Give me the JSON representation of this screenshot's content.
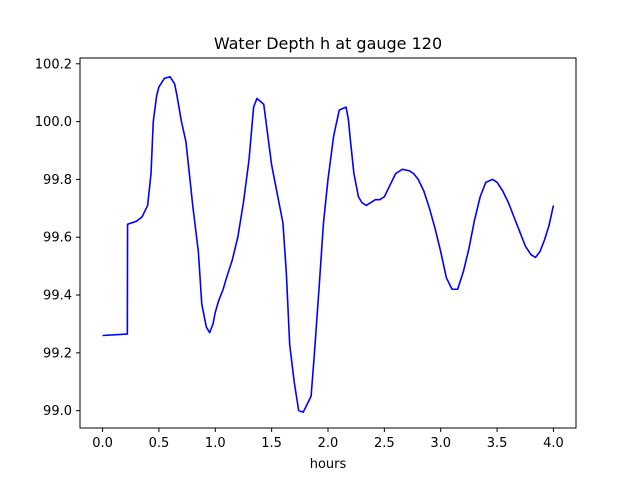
{
  "chart_data": {
    "type": "line",
    "title": "Water Depth h at gauge 120",
    "xlabel": "hours",
    "ylabel": "",
    "xlim": [
      -0.2,
      4.2
    ],
    "ylim": [
      98.94,
      100.22
    ],
    "xticks": [
      0.0,
      0.5,
      1.0,
      1.5,
      2.0,
      2.5,
      3.0,
      3.5,
      4.0
    ],
    "xtick_labels": [
      "0.0",
      "0.5",
      "1.0",
      "1.5",
      "2.0",
      "2.5",
      "3.0",
      "3.5",
      "4.0"
    ],
    "yticks": [
      99.0,
      99.2,
      99.4,
      99.6,
      99.8,
      100.0,
      100.2
    ],
    "ytick_labels": [
      "99.0",
      "99.2",
      "99.4",
      "99.6",
      "99.8",
      "100.0",
      "100.2"
    ],
    "grid": false,
    "legend": "none",
    "series": [
      {
        "color": "#0000ff",
        "x": [
          0.0,
          0.22,
          0.222,
          0.3,
          0.35,
          0.4,
          0.43,
          0.45,
          0.48,
          0.5,
          0.55,
          0.6,
          0.64,
          0.66,
          0.7,
          0.74,
          0.77,
          0.8,
          0.85,
          0.88,
          0.92,
          0.95,
          0.98,
          1.0,
          1.03,
          1.07,
          1.1,
          1.15,
          1.2,
          1.25,
          1.3,
          1.34,
          1.37,
          1.4,
          1.43,
          1.46,
          1.5,
          1.55,
          1.6,
          1.63,
          1.66,
          1.7,
          1.74,
          1.78,
          1.8,
          1.85,
          1.88,
          1.92,
          1.96,
          2.0,
          2.05,
          2.1,
          2.16,
          2.18,
          2.2,
          2.23,
          2.27,
          2.3,
          2.34,
          2.38,
          2.42,
          2.46,
          2.5,
          2.55,
          2.6,
          2.66,
          2.72,
          2.76,
          2.8,
          2.85,
          2.9,
          2.95,
          3.0,
          3.05,
          3.1,
          3.15,
          3.2,
          3.25,
          3.3,
          3.35,
          3.4,
          3.46,
          3.5,
          3.55,
          3.6,
          3.65,
          3.7,
          3.75,
          3.8,
          3.84,
          3.88,
          3.92,
          3.96,
          4.0
        ],
        "y": [
          99.26,
          99.265,
          99.645,
          99.655,
          99.67,
          99.71,
          99.82,
          100.0,
          100.09,
          100.12,
          100.15,
          100.155,
          100.13,
          100.09,
          100.0,
          99.93,
          99.82,
          99.71,
          99.55,
          99.37,
          99.29,
          99.27,
          99.3,
          99.34,
          99.38,
          99.42,
          99.46,
          99.52,
          99.6,
          99.72,
          99.87,
          100.05,
          100.08,
          100.07,
          100.06,
          99.97,
          99.85,
          99.75,
          99.65,
          99.48,
          99.23,
          99.1,
          99.0,
          98.995,
          99.01,
          99.05,
          99.2,
          99.42,
          99.65,
          99.8,
          99.95,
          100.04,
          100.05,
          100.01,
          99.93,
          99.82,
          99.74,
          99.72,
          99.71,
          99.72,
          99.73,
          99.73,
          99.74,
          99.78,
          99.82,
          99.835,
          99.83,
          99.82,
          99.8,
          99.76,
          99.7,
          99.63,
          99.55,
          99.46,
          99.42,
          99.42,
          99.48,
          99.56,
          99.66,
          99.74,
          99.79,
          99.8,
          99.79,
          99.76,
          99.72,
          99.67,
          99.62,
          99.57,
          99.54,
          99.53,
          99.55,
          99.59,
          99.64,
          99.71
        ]
      }
    ]
  }
}
